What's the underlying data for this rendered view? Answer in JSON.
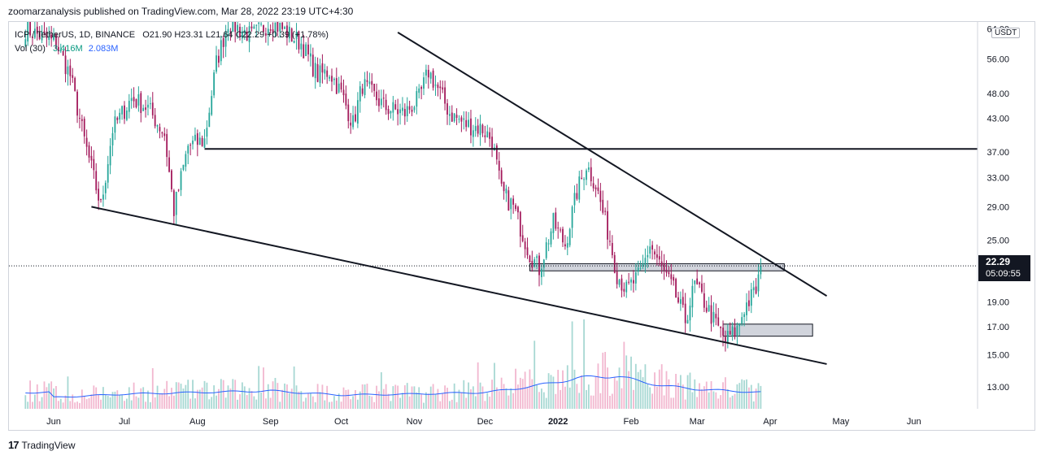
{
  "header": {
    "published_line": "zoomarzanalysis published on TradingView.com, Mar 28, 2022 23:19 UTC+4:30"
  },
  "legend": {
    "symbol": "ICP / TetherUS, 1D, BINANCE",
    "ohlc": "O21.90  H23.31  L21.64  C22.29  +0.39 (+1.78%)",
    "vol_label": "Vol (30)",
    "vol_value": "3.416M",
    "vol_ma": "2.083M"
  },
  "price_axis": {
    "currency": "USDT",
    "last_price": "22.29",
    "countdown": "05:09:55"
  },
  "footer": {
    "brand": "TradingView",
    "logo_mark": "17"
  },
  "colors": {
    "up": "#26a69a",
    "down": "#a3195b",
    "trendline": "#131722",
    "zone_fill": "#d1d4dc",
    "volume_ma": "#2962ff",
    "vol_up": "#a7d8d3",
    "vol_down": "#f2b7cf"
  },
  "chart_data": {
    "type": "candlestick",
    "title": "ICP / TetherUS, 1D, BINANCE",
    "scale": "log",
    "y_ticks": [
      64.0,
      56.0,
      48.0,
      43.0,
      37.0,
      33.0,
      29.0,
      25.0,
      19.0,
      17.0,
      15.0,
      13.0
    ],
    "y_tick_labels": [
      "64.00",
      "56.00",
      "48.00",
      "43.00",
      "37.00",
      "33.00",
      "29.00",
      "25.00",
      "19.00",
      "17.00",
      "15.00",
      "13.00"
    ],
    "x_tick_labels": [
      "Jun",
      "Jul",
      "Aug",
      "Sep",
      "Oct",
      "Nov",
      "Dec",
      "2022",
      "Feb",
      "Mar",
      "Apr",
      "May",
      "Jun"
    ],
    "x_tick_dates": [
      "2021-06-01",
      "2021-07-01",
      "2021-08-01",
      "2021-09-01",
      "2021-10-01",
      "2021-11-01",
      "2021-12-01",
      "2022-01-01",
      "2022-02-01",
      "2022-03-01",
      "2022-04-01",
      "2022-05-01",
      "2022-06-01"
    ],
    "x_range_dates": [
      "2021-05-13",
      "2022-06-28"
    ],
    "y_range": [
      11.8,
      66.0
    ],
    "last_price": 22.29,
    "price_path": [
      [
        "2021-05-20",
        64.0
      ],
      [
        "2021-06-02",
        60.0
      ],
      [
        "2021-06-08",
        52.0
      ],
      [
        "2021-06-14",
        39.0
      ],
      [
        "2021-06-21",
        29.0
      ],
      [
        "2021-06-26",
        41.0
      ],
      [
        "2021-07-04",
        47.0
      ],
      [
        "2021-07-11",
        45.0
      ],
      [
        "2021-07-18",
        40.0
      ],
      [
        "2021-07-22",
        28.5
      ],
      [
        "2021-07-28",
        38.0
      ],
      [
        "2021-08-04",
        39.0
      ],
      [
        "2021-08-09",
        55.0
      ],
      [
        "2021-08-14",
        66.0
      ],
      [
        "2021-08-24",
        62.0
      ],
      [
        "2021-09-01",
        66.0
      ],
      [
        "2021-09-06",
        64.0
      ],
      [
        "2021-09-14",
        60.0
      ],
      [
        "2021-09-21",
        52.0
      ],
      [
        "2021-09-26",
        53.0
      ],
      [
        "2021-10-01",
        48.0
      ],
      [
        "2021-10-06",
        42.0
      ],
      [
        "2021-10-10",
        50.0
      ],
      [
        "2021-10-20",
        45.0
      ],
      [
        "2021-10-28",
        44.0
      ],
      [
        "2021-11-03",
        47.0
      ],
      [
        "2021-11-07",
        53.0
      ],
      [
        "2021-11-12",
        48.0
      ],
      [
        "2021-11-16",
        44.0
      ],
      [
        "2021-11-22",
        42.0
      ],
      [
        "2021-11-30",
        41.0
      ],
      [
        "2021-12-04",
        39.0
      ],
      [
        "2021-12-08",
        31.0
      ],
      [
        "2021-12-13",
        29.0
      ],
      [
        "2021-12-20",
        23.5
      ],
      [
        "2021-12-24",
        22.0
      ],
      [
        "2021-12-30",
        27.0
      ],
      [
        "2022-01-04",
        24.5
      ],
      [
        "2022-01-09",
        31.0
      ],
      [
        "2022-01-13",
        35.0
      ],
      [
        "2022-01-17",
        32.0
      ],
      [
        "2022-01-23",
        25.0
      ],
      [
        "2022-01-26",
        21.5
      ],
      [
        "2022-01-30",
        20.0
      ],
      [
        "2022-02-05",
        21.5
      ],
      [
        "2022-02-09",
        24.5
      ],
      [
        "2022-02-14",
        22.0
      ],
      [
        "2022-02-19",
        20.0
      ],
      [
        "2022-02-24",
        17.5
      ],
      [
        "2022-02-28",
        20.5
      ],
      [
        "2022-03-04",
        19.0
      ],
      [
        "2022-03-08",
        17.5
      ],
      [
        "2022-03-13",
        16.0
      ],
      [
        "2022-03-18",
        16.8
      ],
      [
        "2022-03-21",
        18.5
      ],
      [
        "2022-03-26",
        20.0
      ],
      [
        "2022-03-28",
        22.29
      ]
    ],
    "trendlines": [
      {
        "name": "upper-descending",
        "from": [
          "2021-10-25",
          63.0
        ],
        "to": [
          "2022-04-25",
          19.5
        ]
      },
      {
        "name": "lower-descending",
        "from": [
          "2021-06-17",
          29.0
        ],
        "to": [
          "2022-04-25",
          14.4
        ]
      },
      {
        "name": "horizontal-resistance",
        "from": [
          "2021-08-04",
          37.5
        ],
        "to": [
          "2022-06-28",
          37.5
        ]
      }
    ],
    "zones": [
      {
        "name": "resistance-zone",
        "from": "2021-12-20",
        "to": "2022-04-07",
        "top": 22.5,
        "bottom": 21.8
      },
      {
        "name": "support-zone",
        "from": "2022-03-12",
        "to": "2022-04-19",
        "top": 17.2,
        "bottom": 16.3
      }
    ],
    "volume_ma_path": [
      [
        "2021-06-01",
        0.35
      ],
      [
        "2021-07-01",
        0.45
      ],
      [
        "2021-08-01",
        0.5
      ],
      [
        "2021-09-01",
        0.55
      ],
      [
        "2021-10-01",
        0.42
      ],
      [
        "2021-11-01",
        0.45
      ],
      [
        "2021-12-01",
        0.5
      ],
      [
        "2022-01-10",
        0.95
      ],
      [
        "2022-01-26",
        1.0
      ],
      [
        "2022-02-15",
        0.7
      ],
      [
        "2022-03-01",
        0.6
      ],
      [
        "2022-03-28",
        0.5
      ]
    ]
  }
}
